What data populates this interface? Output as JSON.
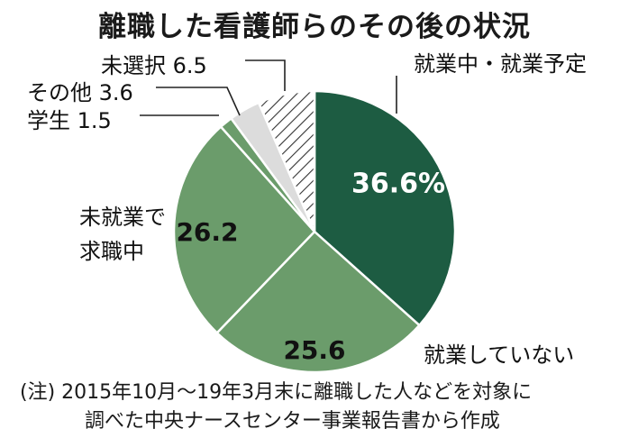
{
  "title": "離職した看護師らのその後の状況",
  "note_lines": [
    "(注) 2015年10月～19年3月末に離職した人などを対象に",
    "調べた中央ナースセンター事業報告書から作成"
  ],
  "chart_data": {
    "type": "pie",
    "title": "離職した看護師らのその後の状況",
    "unit": "%",
    "slices": [
      {
        "label": "就業中・就業予定",
        "value": 36.6,
        "value_text": "36.6%",
        "color": "#1d5c42",
        "pattern": "none",
        "label_lines": [
          "就業中・就業予定"
        ],
        "value_inside": true
      },
      {
        "label": "就業していない",
        "value": 25.6,
        "value_text": "25.6",
        "color": "#6b9c6b",
        "pattern": "none",
        "label_lines": [
          "就業していない"
        ],
        "value_inside": true
      },
      {
        "label": "未就業で求職中",
        "value": 26.2,
        "value_text": "26.2",
        "color": "#6b9c6b",
        "pattern": "none",
        "label_lines": [
          "未就業で",
          "求職中"
        ],
        "value_inside": true
      },
      {
        "label": "学生",
        "value": 1.5,
        "value_text": "1.5",
        "color": "#6b9c6b",
        "pattern": "none",
        "label_lines": [
          "学生"
        ],
        "value_inside": false
      },
      {
        "label": "その他",
        "value": 3.6,
        "value_text": "3.6",
        "color": "#dcdcdc",
        "pattern": "none",
        "label_lines": [
          "その他"
        ],
        "value_inside": false
      },
      {
        "label": "未選択",
        "value": 6.5,
        "value_text": "6.5",
        "color": "#ffffff",
        "pattern": "hatch",
        "label_lines": [
          "未選択"
        ],
        "value_inside": false
      }
    ]
  }
}
